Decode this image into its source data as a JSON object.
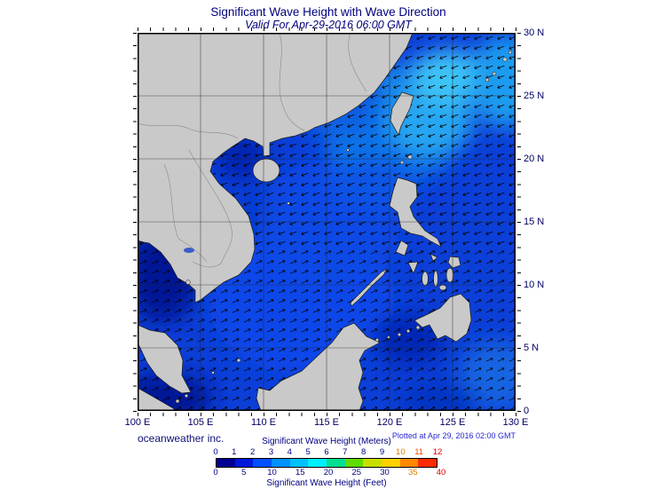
{
  "header": {
    "title": "Significant Wave Height with Wave Direction",
    "subtitle": "Valid For Apr-29-2016 06:00 GMT"
  },
  "map": {
    "lat_ticks": [
      "30 N",
      "25 N",
      "20 N",
      "15 N",
      "10 N",
      "5 N",
      "0"
    ],
    "lon_ticks": [
      "100 E",
      "105 E",
      "110 E",
      "115 E",
      "120 E",
      "125 E",
      "130 E"
    ],
    "land_color": "#c9c9c9",
    "ocean_base_color": "#0b3fd8",
    "frame_color": "#000000"
  },
  "footer": {
    "credit": "oceanweather inc.",
    "plotted": "Plotted at Apr 29, 2016 02:00 GMT"
  },
  "legend": {
    "meters_label": "Significant Wave Height (Meters)",
    "feet_label": "Significant Wave Height (Feet)",
    "meters_ticks": [
      {
        "v": "0",
        "c": "#000080"
      },
      {
        "v": "1",
        "c": "#000080"
      },
      {
        "v": "2",
        "c": "#000080"
      },
      {
        "v": "3",
        "c": "#000080"
      },
      {
        "v": "4",
        "c": "#000080"
      },
      {
        "v": "5",
        "c": "#000080"
      },
      {
        "v": "6",
        "c": "#000080"
      },
      {
        "v": "7",
        "c": "#000080"
      },
      {
        "v": "8",
        "c": "#000080"
      },
      {
        "v": "9",
        "c": "#000080"
      },
      {
        "v": "10",
        "c": "#e07800"
      },
      {
        "v": "11",
        "c": "#f04800"
      },
      {
        "v": "12",
        "c": "#e00000"
      }
    ],
    "feet_ticks": [
      {
        "v": "0",
        "c": "#000080"
      },
      {
        "v": "5",
        "c": "#000080"
      },
      {
        "v": "10",
        "c": "#000080"
      },
      {
        "v": "15",
        "c": "#000080"
      },
      {
        "v": "20",
        "c": "#000080"
      },
      {
        "v": "25",
        "c": "#000080"
      },
      {
        "v": "30",
        "c": "#000080"
      },
      {
        "v": "35",
        "c": "#e07800"
      },
      {
        "v": "40",
        "c": "#e00000"
      }
    ],
    "bar_colors": [
      "#000090",
      "#0018dc",
      "#0050ff",
      "#0090ff",
      "#00c0ff",
      "#00f0ff",
      "#00e090",
      "#60dc00",
      "#c8e000",
      "#ffd000",
      "#ff8800",
      "#ff2a00"
    ],
    "scale_meters_range": [
      0,
      12
    ],
    "scale_feet_range": [
      0,
      40
    ]
  }
}
